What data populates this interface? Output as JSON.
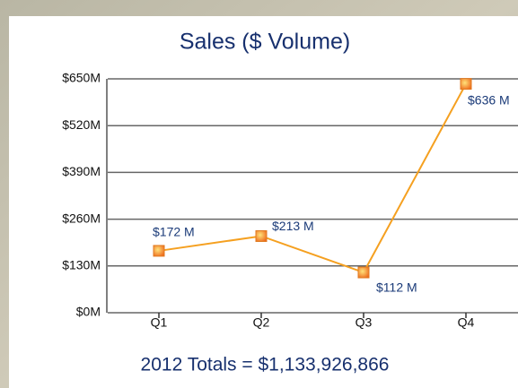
{
  "chart_data": {
    "type": "line",
    "title": "Sales ($ Volume)",
    "categories": [
      "Q1",
      "Q2",
      "Q3",
      "Q4"
    ],
    "series": [
      {
        "color": "#f5a020",
        "values": [
          172,
          213,
          112,
          636
        ],
        "value_labels": [
          "$172 M",
          "$213 M",
          "$112 M",
          "$636 M"
        ]
      }
    ],
    "ylim": [
      0,
      650
    ],
    "yticks": [
      {
        "value": 0,
        "label": "$0M"
      },
      {
        "value": 130,
        "label": "$130M"
      },
      {
        "value": 260,
        "label": "$260M"
      },
      {
        "value": 390,
        "label": "$390M"
      },
      {
        "value": 520,
        "label": "$520M"
      },
      {
        "value": 650,
        "label": "$650M"
      }
    ],
    "grid": true,
    "footer": "2012 Totals = $1,133,926,866"
  }
}
